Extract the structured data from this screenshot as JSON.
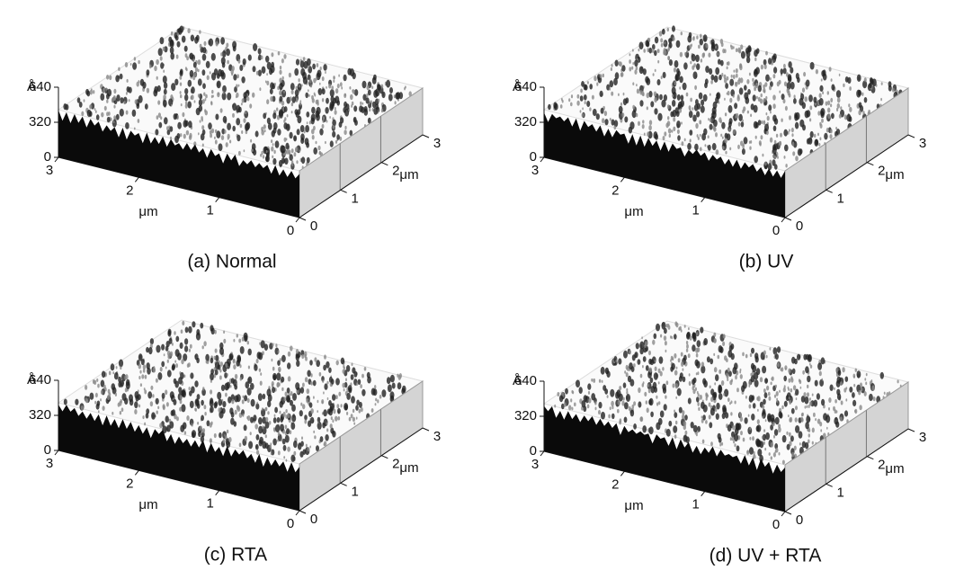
{
  "panels": [
    {
      "caption": "(a) Normal",
      "z_unit": "Å",
      "z_ticks": [
        "640",
        "320",
        "0"
      ],
      "x_ticks": [
        "3",
        "2",
        "1",
        "0"
      ],
      "x_label": "μm",
      "y_ticks": [
        "0",
        "1",
        "2",
        "3"
      ],
      "y_label": "μm"
    },
    {
      "caption": "(b) UV",
      "z_unit": "Å",
      "z_ticks": [
        "640",
        "320",
        "0"
      ],
      "x_ticks": [
        "3",
        "2",
        "1",
        "0"
      ],
      "x_label": "μm",
      "y_ticks": [
        "0",
        "1",
        "2",
        "3"
      ],
      "y_label": "μm"
    },
    {
      "caption": "(c) RTA",
      "z_unit": "Å",
      "z_ticks": [
        "640",
        "320",
        "0"
      ],
      "x_ticks": [
        "3",
        "2",
        "1",
        "0"
      ],
      "x_label": "μm",
      "y_ticks": [
        "0",
        "1",
        "2",
        "3"
      ],
      "y_label": "μm"
    },
    {
      "caption": "(d) UV + RTA",
      "z_unit": "Å",
      "z_ticks": [
        "640",
        "320",
        "0"
      ],
      "x_ticks": [
        "3",
        "2",
        "1",
        "0"
      ],
      "x_label": "μm",
      "y_ticks": [
        "0",
        "1",
        "2",
        "3"
      ],
      "y_label": "μm"
    }
  ]
}
